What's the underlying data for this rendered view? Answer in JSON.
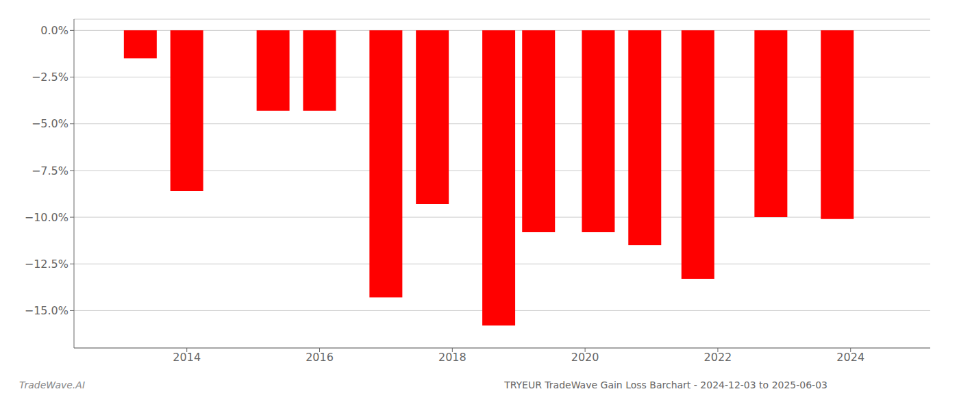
{
  "chart_data": {
    "type": "bar",
    "title": "TRYEUR TradeWave Gain Loss Barchart - 2024-12-03 to 2025-06-03",
    "annotations": [
      "TradeWave.AI"
    ],
    "x": [
      2013.3,
      2014.0,
      2015.3,
      2016.0,
      2017.0,
      2017.7,
      2018.7,
      2019.3,
      2020.2,
      2020.9,
      2021.7,
      2022.8,
      2023.8
    ],
    "values": [
      -1.5,
      -8.6,
      -4.3,
      -4.3,
      -14.3,
      -9.3,
      -15.8,
      -10.8,
      -10.8,
      -11.5,
      -13.3,
      -10.0,
      -10.1
    ],
    "color": "#FF0000",
    "xlim": [
      2012.3,
      2025.2
    ],
    "xticks": [
      2014,
      2016,
      2018,
      2020,
      2022,
      2024
    ],
    "ylim": [
      -17.0,
      0.6
    ],
    "yticks": [
      {
        "value": 0.0,
        "label": "0.0%"
      },
      {
        "value": -2.5,
        "label": "−2.5%"
      },
      {
        "value": -5.0,
        "label": "−5.0%"
      },
      {
        "value": -7.5,
        "label": "−7.5%"
      },
      {
        "value": -10.0,
        "label": "−10.0%"
      },
      {
        "value": -12.5,
        "label": "−12.5%"
      },
      {
        "value": -15.0,
        "label": "−15.0%"
      }
    ],
    "grid": true
  }
}
